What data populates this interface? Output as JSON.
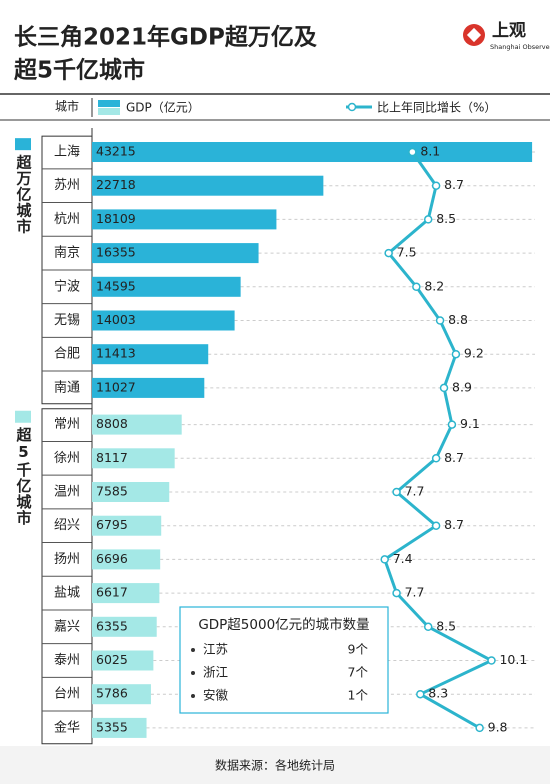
{
  "header": {
    "title_lines": [
      "长三角2021年GDP超万亿及",
      "超5千亿城市"
    ],
    "logo": "上观",
    "logo_sub": "Shanghai Observer"
  },
  "chart_data": {
    "type": "bar-line",
    "category_header": "城市",
    "bar_legend": "GDP（亿元）",
    "categories": [
      "上海",
      "苏州",
      "杭州",
      "南京",
      "宁波",
      "无锡",
      "合肥",
      "南通",
      "常州",
      "徐州",
      "温州",
      "绍兴",
      "扬州",
      "盐城",
      "嘉兴",
      "泰州",
      "台州",
      "金华"
    ],
    "series": [
      {
        "name": "超万亿城市",
        "color": "#2ab3d8",
        "values": [
          43215,
          22718,
          18109,
          16355,
          14595,
          14003,
          11413,
          11027,
          null,
          null,
          null,
          null,
          null,
          null,
          null,
          null,
          null,
          null
        ]
      },
      {
        "name": "超5千亿城市",
        "color": "#a4e8e6",
        "values": [
          null,
          null,
          null,
          null,
          null,
          null,
          null,
          null,
          8808,
          8117,
          7585,
          6795,
          6696,
          6617,
          6355,
          6025,
          5786,
          5355
        ]
      }
    ],
    "xlim": [
      0,
      43500
    ],
    "line": {
      "name": "比上年同比增长（%）",
      "color": "#2cb4cc",
      "values": [
        8.1,
        8.7,
        8.5,
        7.5,
        8.2,
        8.8,
        9.2,
        8.9,
        9.1,
        8.7,
        7.7,
        8.7,
        7.4,
        7.7,
        8.5,
        10.1,
        8.3,
        9.8
      ]
    },
    "x2lim": [
      0,
      11.2
    ]
  },
  "inset": {
    "title": "GDP超5000亿元的城市数量",
    "items": [
      {
        "name": "江苏",
        "count": "9个"
      },
      {
        "name": "浙江",
        "count": "7个"
      },
      {
        "name": "安徽",
        "count": "1个"
      }
    ]
  },
  "source": "数据来源：各地统计局"
}
